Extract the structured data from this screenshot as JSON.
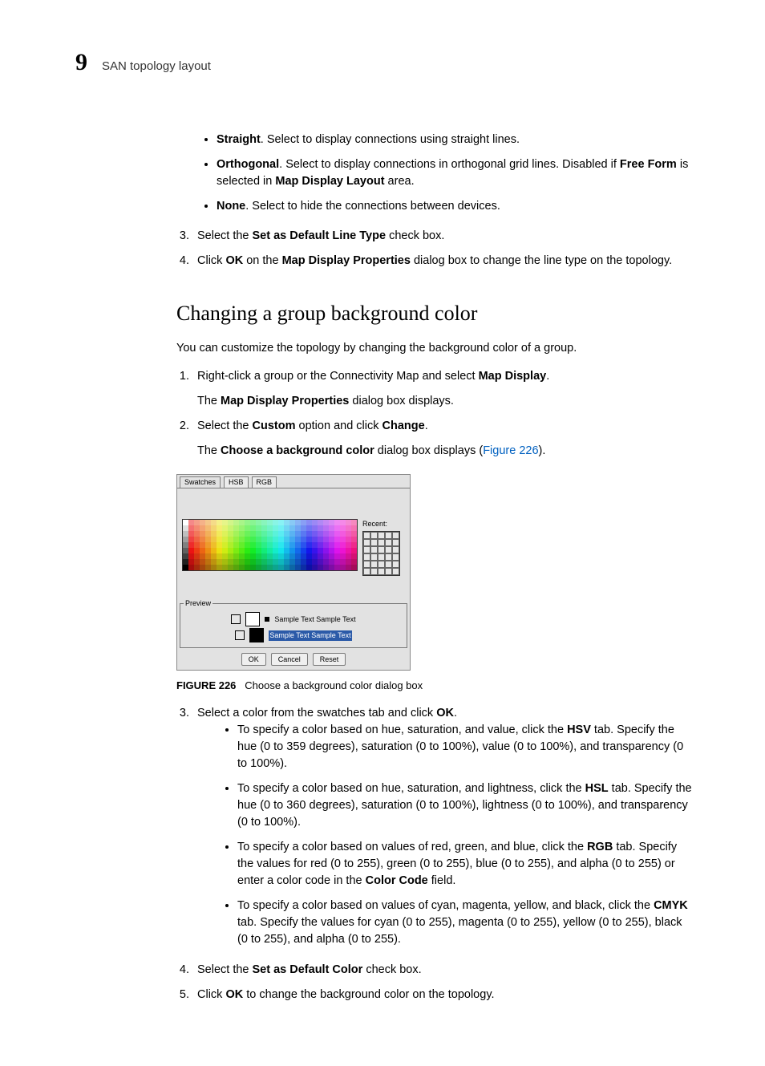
{
  "header": {
    "chapter_number": "9",
    "running_title": "SAN topology layout"
  },
  "top_bullets": [
    {
      "term": "Straight",
      "rest": ". Select to display connections using straight lines."
    },
    {
      "term": "Orthogonal",
      "rest": ". Select to display connections in orthogonal grid lines. Disabled if ",
      "bold2": "Free Form",
      "rest2": " is selected in ",
      "bold3": "Map Display Layout",
      "rest3": " area."
    },
    {
      "term": "None",
      "rest": ". Select to hide the connections between devices."
    }
  ],
  "top_steps": {
    "start": 3,
    "items": [
      {
        "pre": "Select the ",
        "b1": "Set as Default Line Type",
        "post": " check box."
      },
      {
        "pre": "Click ",
        "b1": "OK",
        "mid": " on the ",
        "b2": "Map Display Properties",
        "post": " dialog box to change the line type on the topology."
      }
    ]
  },
  "section_title": "Changing a group background color",
  "intro": "You can customize the topology by changing the background color of a group.",
  "steps1": [
    {
      "pre": "Right-click a group or the Connectivity Map and select ",
      "b1": "Map Display",
      "post": ".",
      "sub_pre": "The ",
      "sub_b": "Map Display Properties",
      "sub_post": " dialog box displays."
    },
    {
      "pre": "Select the ",
      "b1": "Custom",
      "mid": " option and click ",
      "b2": "Change",
      "post": ".",
      "sub_pre": "The ",
      "sub_b": "Choose a background color",
      "sub_post": " dialog box displays (",
      "link": "Figure 226",
      "sub_tail": ")."
    }
  ],
  "dialog": {
    "tabs": [
      "Swatches",
      "HSB",
      "RGB"
    ],
    "recent_label": "Recent:",
    "preview_label": "Preview",
    "sample_text": "Sample Text Sample Text",
    "sample_text2": "Sample Text Sample Text",
    "buttons": {
      "ok": "OK",
      "cancel": "Cancel",
      "reset": "Reset"
    },
    "grid": {
      "cols": 31,
      "rows": 9
    },
    "recent_cells": 30
  },
  "figure": {
    "label": "FIGURE 226",
    "caption": "Choose a background color dialog box"
  },
  "steps2": {
    "start": 3,
    "items": [
      {
        "pre": "Select a color from the swatches tab and click ",
        "b1": "OK",
        "post": ".",
        "bullets": [
          {
            "pre": "To specify a color based on hue, saturation, and value, click the ",
            "b": "HSV",
            "post": " tab. Specify the hue (0 to 359 degrees), saturation (0 to 100%), value (0 to 100%), and transparency (0 to 100%)."
          },
          {
            "pre": "To specify a color based on hue, saturation, and lightness, click the ",
            "b": "HSL",
            "post": " tab. Specify the hue (0 to 360 degrees), saturation (0 to 100%), lightness (0 to 100%), and transparency (0 to 100%)."
          },
          {
            "pre": "To specify a color based on values of red, green, and blue, click the ",
            "b": "RGB",
            "post": " tab. Specify the values for red (0 to 255), green (0 to 255), blue (0 to 255), and alpha (0 to 255) or enter a color code in the ",
            "b2": "Color Code",
            "post2": " field."
          },
          {
            "pre": "To specify a color based on values of cyan, magenta, yellow, and black, click the ",
            "b": "CMYK",
            "post": " tab. Specify the values for cyan (0 to 255), magenta (0 to 255), yellow (0 to 255), black (0 to 255), and alpha (0 to 255)."
          }
        ]
      },
      {
        "pre": "Select the ",
        "b1": "Set as Default Color",
        "post": " check box."
      },
      {
        "pre": "Click ",
        "b1": "OK",
        "post": " to change the background color on the topology."
      }
    ]
  }
}
